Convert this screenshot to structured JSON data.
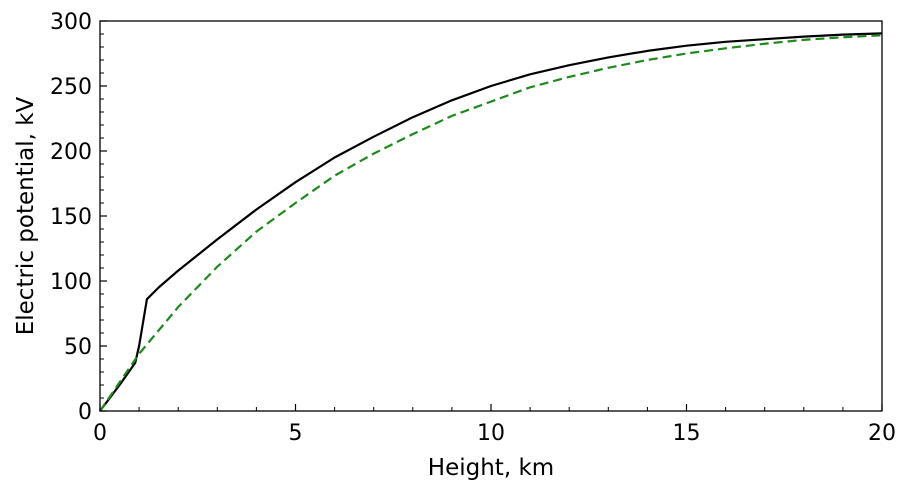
{
  "chart_data": {
    "type": "line",
    "title": "",
    "xlabel": "Height, km",
    "ylabel": "Electric potential, kV",
    "xlim": [
      0,
      20
    ],
    "ylim": [
      0,
      300
    ],
    "x_ticks": [
      0,
      5,
      10,
      15,
      20
    ],
    "y_ticks": [
      0,
      50,
      100,
      150,
      200,
      250,
      300
    ],
    "x_minor_step": 1,
    "y_minor_step": 10,
    "grid": false,
    "legend": "none",
    "series": [
      {
        "style": "solid",
        "color": "#000000",
        "points": [
          [
            0,
            0
          ],
          [
            0.5,
            20
          ],
          [
            0.9,
            37
          ],
          [
            1.0,
            50
          ],
          [
            1.2,
            86
          ],
          [
            1.5,
            95
          ],
          [
            2,
            108
          ],
          [
            3,
            132
          ],
          [
            4,
            155
          ],
          [
            5,
            176
          ],
          [
            6,
            195
          ],
          [
            7,
            211
          ],
          [
            8,
            226
          ],
          [
            9,
            239
          ],
          [
            10,
            250
          ],
          [
            11,
            259
          ],
          [
            12,
            266
          ],
          [
            13,
            272
          ],
          [
            14,
            277
          ],
          [
            15,
            281
          ],
          [
            16,
            284
          ],
          [
            17,
            286
          ],
          [
            18,
            288
          ],
          [
            19,
            289.5
          ],
          [
            20,
            290.5
          ]
        ]
      },
      {
        "style": "dashed",
        "color": "#1e8a1e",
        "points": [
          [
            0,
            0
          ],
          [
            0.5,
            22
          ],
          [
            1,
            44
          ],
          [
            2,
            80
          ],
          [
            3,
            111
          ],
          [
            4,
            138
          ],
          [
            5,
            160
          ],
          [
            6,
            181
          ],
          [
            7,
            198
          ],
          [
            8,
            213
          ],
          [
            9,
            227
          ],
          [
            10,
            238
          ],
          [
            11,
            249
          ],
          [
            12,
            257
          ],
          [
            13,
            264
          ],
          [
            14,
            270
          ],
          [
            15,
            275
          ],
          [
            16,
            279
          ],
          [
            17,
            282.5
          ],
          [
            18,
            285.5
          ],
          [
            19,
            287.5
          ],
          [
            20,
            289
          ]
        ]
      }
    ]
  }
}
